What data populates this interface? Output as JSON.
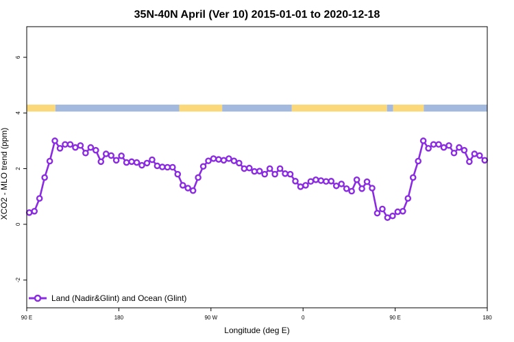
{
  "chart_data": {
    "type": "line",
    "title": "35N-40N April (Ver 10)   2015-01-01 to 2020-12-18",
    "xlabel": "Longitude (deg E)",
    "ylabel": "XCO2 - MLO trend (ppm)",
    "xlim": [
      90,
      540
    ],
    "ylim": [
      -3,
      7.1
    ],
    "x_ticks": [
      {
        "value": 90,
        "label": "90 E"
      },
      {
        "value": 180,
        "label": "180"
      },
      {
        "value": 270,
        "label": "90 W"
      },
      {
        "value": 360,
        "label": "0"
      },
      {
        "value": 450,
        "label": "90 E"
      },
      {
        "value": 540,
        "label": "180"
      }
    ],
    "y_ticks": [
      {
        "value": -2,
        "label": "-2"
      },
      {
        "value": 0,
        "label": "0"
      },
      {
        "value": 2,
        "label": "2"
      },
      {
        "value": 4,
        "label": "4"
      },
      {
        "value": 6,
        "label": "6"
      }
    ],
    "grid": false,
    "legend_position": "bottom-left",
    "series": [
      {
        "name": "Land (Nadir&Glint) and Ocean (Glint)",
        "color": "#8a2be2",
        "x": [
          92.5,
          97.5,
          102.5,
          107.5,
          112.5,
          117.5,
          122.5,
          127.5,
          132.5,
          137.5,
          142.5,
          147.5,
          152.5,
          157.5,
          162.5,
          167.5,
          172.5,
          177.5,
          182.5,
          187.5,
          192.5,
          197.5,
          202.5,
          207.5,
          212.5,
          217.5,
          222.5,
          227.5,
          232.5,
          237.5,
          242.5,
          247.5,
          252.5,
          257.5,
          262.5,
          267.5,
          272.5,
          277.5,
          282.5,
          287.5,
          292.5,
          297.5,
          302.5,
          307.5,
          312.5,
          317.5,
          322.5,
          327.5,
          332.5,
          337.5,
          342.5,
          347.5,
          352.5,
          357.5,
          362.5,
          367.5,
          372.5,
          377.5,
          382.5,
          387.5,
          392.5,
          397.5,
          402.5,
          407.5,
          412.5,
          417.5,
          422.5,
          427.5,
          432.5,
          437.5,
          442.5,
          447.5,
          452.5,
          457.5,
          462.5,
          467.5,
          472.5,
          477.5,
          482.5,
          487.5,
          492.5,
          497.5,
          502.5,
          507.5,
          512.5,
          517.5,
          522.5,
          527.5,
          532.5,
          537.5
        ],
        "values": [
          0.42,
          0.47,
          0.93,
          1.68,
          2.27,
          3.0,
          2.73,
          2.87,
          2.87,
          2.76,
          2.83,
          2.56,
          2.76,
          2.66,
          2.25,
          2.53,
          2.47,
          2.3,
          2.46,
          2.22,
          2.25,
          2.22,
          2.12,
          2.2,
          2.32,
          2.1,
          2.06,
          2.05,
          2.05,
          1.8,
          1.4,
          1.3,
          1.21,
          1.68,
          2.08,
          2.28,
          2.36,
          2.33,
          2.3,
          2.36,
          2.28,
          2.2,
          2.0,
          2.02,
          1.9,
          1.91,
          1.8,
          2.0,
          1.8,
          2.0,
          1.82,
          1.8,
          1.55,
          1.35,
          1.4,
          1.54,
          1.6,
          1.57,
          1.54,
          1.55,
          1.38,
          1.45,
          1.28,
          1.19,
          1.6,
          1.28,
          1.53,
          1.3,
          0.4,
          0.55,
          0.24,
          0.3,
          0.45,
          0.47,
          0.93,
          1.68,
          2.27,
          3.0,
          2.73,
          2.87,
          2.87,
          2.76,
          2.83,
          2.56,
          2.76,
          2.66,
          2.25,
          2.53,
          2.47,
          2.3
        ]
      }
    ],
    "land_ocean_band": {
      "value_range": [
        4.05,
        4.3
      ],
      "land_color": "#fbd97a",
      "ocean_color": "#a3b9dd",
      "segments": [
        {
          "type": "land",
          "from": 90,
          "to": 118
        },
        {
          "type": "ocean",
          "from": 118,
          "to": 239
        },
        {
          "type": "land",
          "from": 239,
          "to": 281
        },
        {
          "type": "ocean",
          "from": 281,
          "to": 349
        },
        {
          "type": "land",
          "from": 349,
          "to": 442
        },
        {
          "type": "ocean",
          "from": 442,
          "to": 448
        },
        {
          "type": "land",
          "from": 448,
          "to": 478
        },
        {
          "type": "ocean",
          "from": 478,
          "to": 540
        }
      ]
    }
  }
}
